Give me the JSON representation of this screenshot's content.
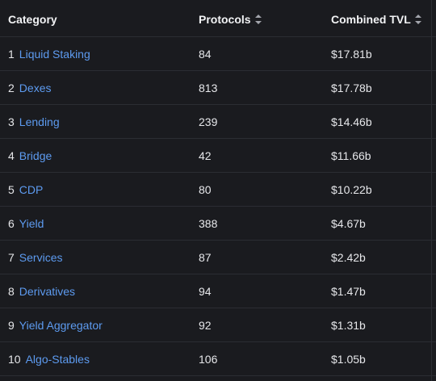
{
  "header": {
    "category": "Category",
    "protocols": "Protocols",
    "tvl": "Combined TVL"
  },
  "rows": [
    {
      "rank": "1",
      "category": "Liquid Staking",
      "protocols": "84",
      "tvl": "$17.81b"
    },
    {
      "rank": "2",
      "category": "Dexes",
      "protocols": "813",
      "tvl": "$17.78b"
    },
    {
      "rank": "3",
      "category": "Lending",
      "protocols": "239",
      "tvl": "$14.46b"
    },
    {
      "rank": "4",
      "category": "Bridge",
      "protocols": "42",
      "tvl": "$11.66b"
    },
    {
      "rank": "5",
      "category": "CDP",
      "protocols": "80",
      "tvl": "$10.22b"
    },
    {
      "rank": "6",
      "category": "Yield",
      "protocols": "388",
      "tvl": "$4.67b"
    },
    {
      "rank": "7",
      "category": "Services",
      "protocols": "87",
      "tvl": "$2.42b"
    },
    {
      "rank": "8",
      "category": "Derivatives",
      "protocols": "94",
      "tvl": "$1.47b"
    },
    {
      "rank": "9",
      "category": "Yield Aggregator",
      "protocols": "92",
      "tvl": "$1.31b"
    },
    {
      "rank": "10",
      "category": "Algo-Stables",
      "protocols": "106",
      "tvl": "$1.05b"
    }
  ],
  "colors": {
    "background": "#1a1b1f",
    "link": "#5d9bf0",
    "text": "#e6e7ea",
    "divider": "#2b2d33"
  },
  "icons": {
    "sort": "sort-icon"
  }
}
